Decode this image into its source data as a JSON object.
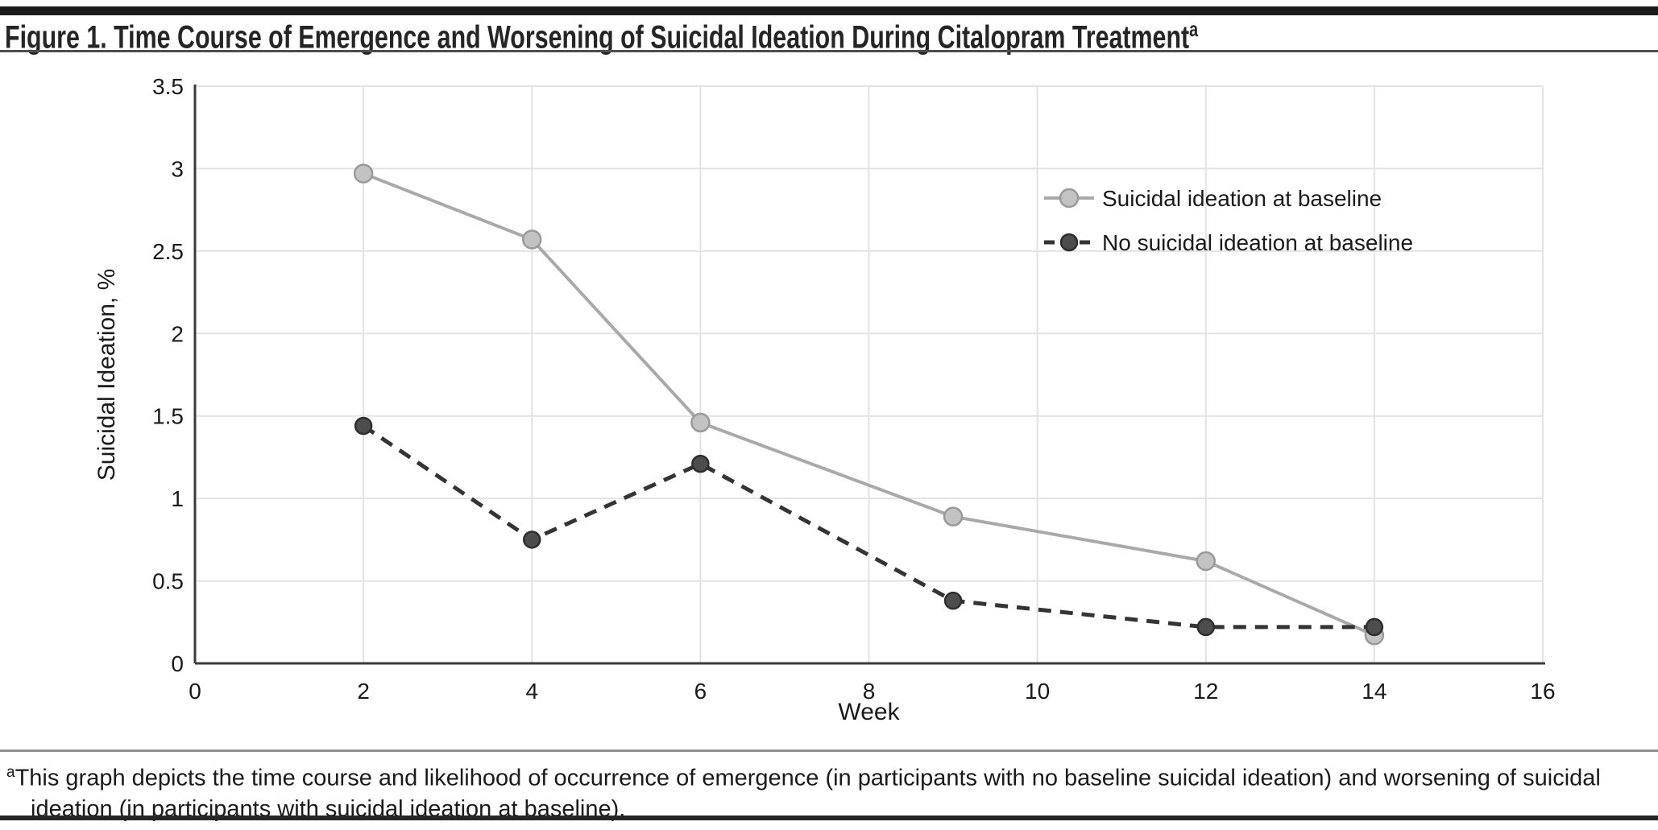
{
  "figure": {
    "title": "Figure 1. Time Course of Emergence and Worsening of Suicidal Ideation During Citalopram Treatment",
    "title_superscript": "a",
    "footnote_superscript": "a",
    "footnote_line1": "This graph depicts the time course and likelihood of occurrence of emergence (in participants with no baseline suicidal ideation) and worsening of suicidal",
    "footnote_line2": "ideation (in participants with suicidal ideation at baseline)."
  },
  "chart_data": {
    "type": "line",
    "x": [
      2,
      4,
      6,
      9,
      12,
      14
    ],
    "series": [
      {
        "name": "Suicidal ideation at baseline",
        "values": [
          2.97,
          2.57,
          1.46,
          0.89,
          0.62,
          0.17
        ],
        "line_style": "solid",
        "line_color": "#a9a9a9",
        "marker_fill": "#c3c3c3",
        "marker_stroke": "#9a9a9a"
      },
      {
        "name": "No suicidal ideation at baseline",
        "values": [
          1.44,
          0.75,
          1.21,
          0.38,
          0.22,
          0.22
        ],
        "line_style": "dashed",
        "line_color": "#343434",
        "marker_fill": "#4d4d4d",
        "marker_stroke": "#2e2e2e"
      }
    ],
    "title": "",
    "xlabel": "Week",
    "ylabel": "Suicidal Ideation, %",
    "xlim": [
      0,
      16
    ],
    "ylim": [
      0,
      3.5
    ],
    "x_ticks": [
      0,
      2,
      4,
      6,
      8,
      10,
      12,
      14,
      16
    ],
    "y_ticks": [
      0,
      0.5,
      1,
      1.5,
      2,
      2.5,
      3,
      3.5
    ],
    "grid": true,
    "legend_position": "upper-right-inside"
  },
  "colors": {
    "grid_line": "#e3e3e3",
    "axis_line": "#3b3b3b",
    "tick_text": "#1a1a1a",
    "top_bar": "#1c1c1c",
    "rule_gray": "#8f8f8f",
    "rule_dark": "#262626"
  }
}
